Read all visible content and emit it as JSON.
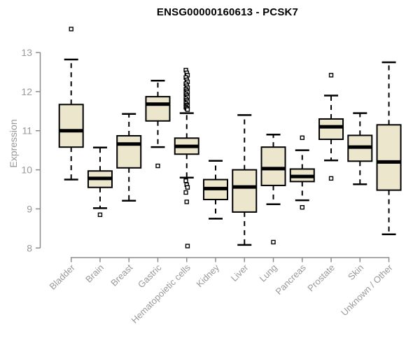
{
  "page": {
    "background": "#ffffff"
  },
  "chart_data": {
    "type": "boxplot",
    "title": "ENSG00000160613 - PCSK7",
    "ylabel": "Expression",
    "xlabel": "",
    "ylim": [
      8,
      13
    ],
    "yticks": [
      13,
      12,
      11,
      10,
      9,
      8
    ],
    "grid": false,
    "legend": "none",
    "box_fill": "#ECE6CC",
    "box_border": "#000000",
    "median_color": "#000000",
    "axis_color": "#8C8C8C",
    "label_color": "#999999",
    "categories": [
      "Bladder",
      "Brain",
      "Breast",
      "Gastric",
      "Hematopoietic cells",
      "Kidney",
      "Liver",
      "Lung",
      "Pancreas",
      "Prostate",
      "Skin",
      "Unknown / Other"
    ],
    "series": [
      {
        "name": "Bladder",
        "whisker_low": 9.75,
        "q1": 10.58,
        "median": 11.0,
        "q3": 11.67,
        "whisker_high": 12.82,
        "outliers": [
          13.6
        ]
      },
      {
        "name": "Brain",
        "whisker_low": 9.02,
        "q1": 9.55,
        "median": 9.78,
        "q3": 9.97,
        "whisker_high": 10.57,
        "outliers": [
          8.85
        ]
      },
      {
        "name": "Breast",
        "whisker_low": 9.21,
        "q1": 10.05,
        "median": 10.66,
        "q3": 10.87,
        "whisker_high": 11.43,
        "outliers": []
      },
      {
        "name": "Gastric",
        "whisker_low": 10.58,
        "q1": 11.25,
        "median": 11.68,
        "q3": 11.87,
        "whisker_high": 12.28,
        "outliers": [
          10.1
        ]
      },
      {
        "name": "Hematopoietic cells",
        "whisker_low": 9.8,
        "q1": 10.4,
        "median": 10.6,
        "q3": 10.81,
        "whisker_high": 11.45,
        "outliers": [
          12.55,
          12.48,
          12.42,
          12.36,
          12.3,
          12.25,
          12.2,
          12.15,
          12.1,
          12.06,
          12.02,
          11.98,
          11.94,
          11.9,
          11.86,
          11.82,
          11.78,
          11.74,
          11.7,
          11.66,
          11.63,
          11.6,
          11.57,
          11.54,
          9.72,
          9.62,
          9.55,
          9.42,
          9.18,
          8.05
        ]
      },
      {
        "name": "Kidney",
        "whisker_low": 8.75,
        "q1": 9.24,
        "median": 9.52,
        "q3": 9.75,
        "whisker_high": 10.23,
        "outliers": []
      },
      {
        "name": "Liver",
        "whisker_low": 8.08,
        "q1": 8.92,
        "median": 9.56,
        "q3": 10.0,
        "whisker_high": 11.4,
        "outliers": []
      },
      {
        "name": "Lung",
        "whisker_low": 9.12,
        "q1": 9.6,
        "median": 10.03,
        "q3": 10.58,
        "whisker_high": 10.9,
        "outliers": [
          8.15
        ]
      },
      {
        "name": "Pancreas",
        "whisker_low": 9.22,
        "q1": 9.7,
        "median": 9.83,
        "q3": 10.02,
        "whisker_high": 10.5,
        "outliers": [
          10.82,
          9.04
        ]
      },
      {
        "name": "Prostate",
        "whisker_low": 10.24,
        "q1": 10.78,
        "median": 11.1,
        "q3": 11.3,
        "whisker_high": 11.9,
        "outliers": [
          12.42,
          9.78
        ]
      },
      {
        "name": "Skin",
        "whisker_low": 9.63,
        "q1": 10.22,
        "median": 10.58,
        "q3": 10.88,
        "whisker_high": 11.45,
        "outliers": []
      },
      {
        "name": "Unknown / Other",
        "whisker_low": 8.35,
        "q1": 9.48,
        "median": 10.2,
        "q3": 11.15,
        "whisker_high": 12.75,
        "outliers": []
      }
    ]
  }
}
